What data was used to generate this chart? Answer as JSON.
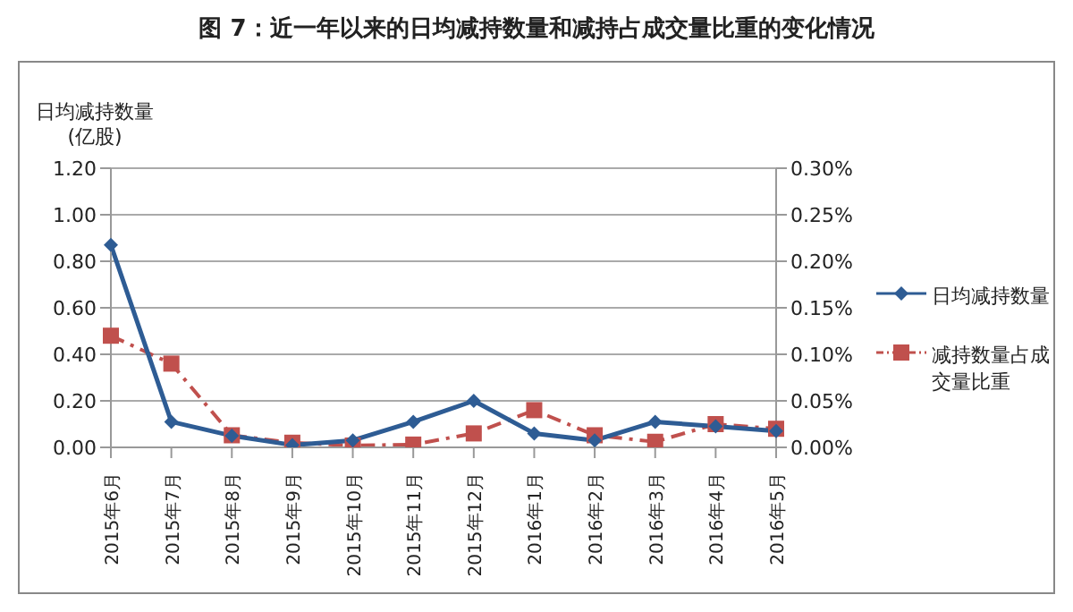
{
  "chart_data": {
    "type": "line",
    "title": "图 7：近一年以来的日均减持数量和减持占成交量比重的变化情况",
    "ylabel": "日均减持数量\n(亿股)",
    "categories": [
      "2015年6月",
      "2015年7月",
      "2015年8月",
      "2015年9月",
      "2015年10月",
      "2015年11月",
      "2015年12月",
      "2016年1月",
      "2016年2月",
      "2016年3月",
      "2016年4月",
      "2016年5月"
    ],
    "series": [
      {
        "name": "日均减持数量",
        "color": "#2e5c94",
        "marker": "diamond",
        "line_style": "solid",
        "values": [
          0.87,
          0.11,
          0.05,
          0.01,
          0.03,
          0.11,
          0.2,
          0.06,
          0.03,
          0.11,
          0.09,
          0.07
        ]
      },
      {
        "name": "减持数量占成交量比重",
        "color": "#c0504d",
        "marker": "square",
        "line_style": "dashed",
        "axis": "y2",
        "values": [
          0.12,
          0.09,
          0.013,
          0.005,
          0.002,
          0.003,
          0.015,
          0.04,
          0.013,
          0.006,
          0.025,
          0.02
        ]
      }
    ],
    "ylim": [
      0,
      1.2
    ],
    "yticks": [
      {
        "value": 0,
        "label": "0.00"
      },
      {
        "value": 0.2,
        "label": "0.20"
      },
      {
        "value": 0.4,
        "label": "0.40"
      },
      {
        "value": 0.6,
        "label": "0.60"
      },
      {
        "value": 0.8,
        "label": "0.80"
      },
      {
        "value": 1,
        "label": "1.00"
      },
      {
        "value": 1.2,
        "label": "1.20"
      }
    ],
    "y2lim": [
      0,
      0.3
    ],
    "y2ticks": [
      {
        "value": 0,
        "label": "0.00%"
      },
      {
        "value": 0.05,
        "label": "0.05%"
      },
      {
        "value": 0.1,
        "label": "0.10%"
      },
      {
        "value": 0.15,
        "label": "0.15%"
      },
      {
        "value": 0.2,
        "label": "0.20%"
      },
      {
        "value": 0.25,
        "label": "0.25%"
      },
      {
        "value": 0.3,
        "label": "0.30%"
      }
    ],
    "grid": "y",
    "legend": "right"
  }
}
